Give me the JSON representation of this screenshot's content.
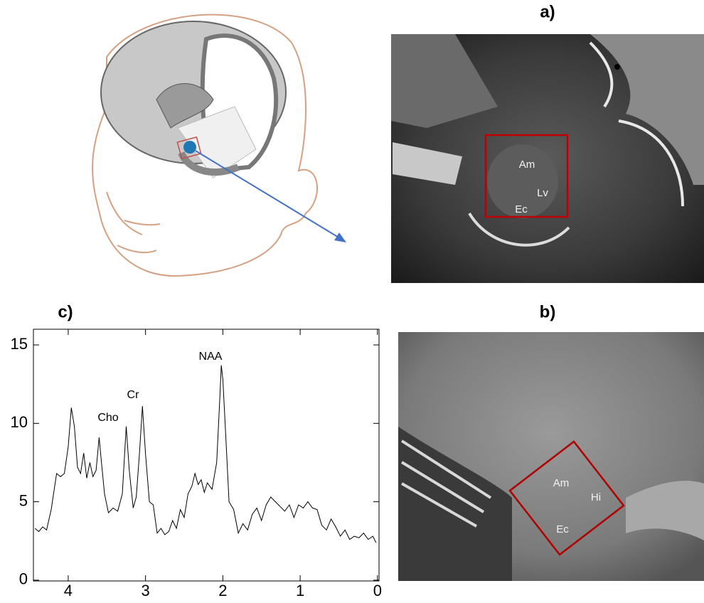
{
  "figure": {
    "panel_labels": {
      "a": "a)",
      "b": "b)",
      "c": "c)"
    },
    "image_a_labels": [
      "Am",
      "Lv",
      "Ec"
    ],
    "image_b_labels": [
      "Am",
      "Hi",
      "Ec"
    ]
  },
  "chart_data": {
    "type": "line",
    "x": [
      4.43,
      4.38,
      4.33,
      4.28,
      4.22,
      4.15,
      4.1,
      4.05,
      4.0,
      3.96,
      3.92,
      3.88,
      3.84,
      3.8,
      3.76,
      3.72,
      3.68,
      3.64,
      3.6,
      3.57,
      3.53,
      3.48,
      3.42,
      3.36,
      3.3,
      3.25,
      3.21,
      3.16,
      3.12,
      3.08,
      3.04,
      3.0,
      2.95,
      2.9,
      2.85,
      2.8,
      2.75,
      2.7,
      2.65,
      2.6,
      2.55,
      2.5,
      2.45,
      2.4,
      2.36,
      2.32,
      2.28,
      2.24,
      2.2,
      2.14,
      2.08,
      2.04,
      2.02,
      2.0,
      1.96,
      1.92,
      1.86,
      1.8,
      1.74,
      1.68,
      1.62,
      1.56,
      1.5,
      1.44,
      1.38,
      1.32,
      1.26,
      1.2,
      1.14,
      1.08,
      1.02,
      0.96,
      0.9,
      0.84,
      0.78,
      0.72,
      0.66,
      0.6,
      0.54,
      0.48,
      0.42,
      0.36,
      0.3,
      0.24,
      0.18,
      0.12,
      0.06,
      0.02
    ],
    "values": [
      3.3,
      3.1,
      3.4,
      3.2,
      4.5,
      6.8,
      6.6,
      6.8,
      8.5,
      11.0,
      9.8,
      7.2,
      6.8,
      8.1,
      6.5,
      7.5,
      6.6,
      7.0,
      9.1,
      7.5,
      5.5,
      4.3,
      4.6,
      4.4,
      5.5,
      9.8,
      7.0,
      4.6,
      5.3,
      8.0,
      11.1,
      8.0,
      5.0,
      4.8,
      3.0,
      3.3,
      2.9,
      3.1,
      3.8,
      3.3,
      4.5,
      4.0,
      5.5,
      6.0,
      6.8,
      6.1,
      6.4,
      5.6,
      6.2,
      5.8,
      7.5,
      11.5,
      13.7,
      12.8,
      9.0,
      5.0,
      4.5,
      3.0,
      3.6,
      3.2,
      4.2,
      4.6,
      3.8,
      4.8,
      5.3,
      5.0,
      4.7,
      4.4,
      4.8,
      4.0,
      4.8,
      4.6,
      5.0,
      4.6,
      4.5,
      3.5,
      3.2,
      3.9,
      3.4,
      2.8,
      3.2,
      2.6,
      2.8,
      2.7,
      3.0,
      2.6,
      2.8,
      2.4
    ],
    "color": "#000000",
    "xlim": [
      4.45,
      -0.02
    ],
    "ylim": [
      -0.05,
      16
    ],
    "xticks": [
      4,
      3,
      2,
      1,
      0
    ],
    "yticks": [
      0,
      5,
      10,
      15
    ],
    "annotations": [
      "Cho",
      "Cr",
      "NAA"
    ]
  }
}
